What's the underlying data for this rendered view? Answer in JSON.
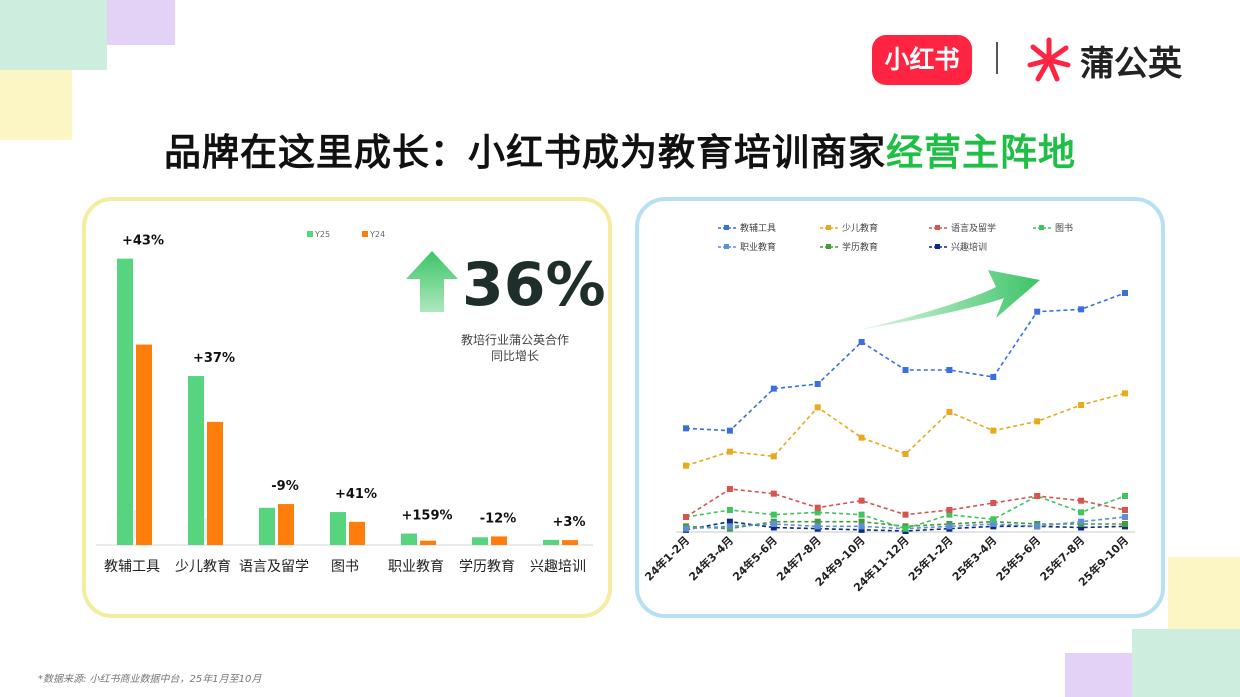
{
  "title": {
    "prefix": "品牌在这里成长：小红书成为教育培训商家",
    "highlight": "经营主阵地"
  },
  "brand": {
    "xhs": "小红书",
    "pgy": "蒲公英"
  },
  "colors": {
    "accent_green": "#1fbf46",
    "y25": "#57d47e",
    "y24": "#ff7d0a"
  },
  "highlight_stat": {
    "value": "36%",
    "caption_line1": "教培行业蒲公英合作",
    "caption_line2": "同比增长"
  },
  "footnote": "*数据来源: 小红书商业数据中台，25年1月至10月",
  "chart_data": [
    {
      "type": "bar",
      "legend": [
        "Y25",
        "Y24"
      ],
      "categories": [
        "教辅工具",
        "少儿教育",
        "语言及留学",
        "图书",
        "职业教育",
        "学历教育",
        "兴趣培训"
      ],
      "series": [
        {
          "name": "Y25",
          "values": [
            100,
            59,
            13,
            11.5,
            4,
            2.7,
            1.8
          ]
        },
        {
          "name": "Y24",
          "values": [
            70,
            43,
            14.3,
            8.1,
            1.5,
            3,
            1.7
          ]
        }
      ],
      "growth_labels": [
        "+43%",
        "+37%",
        "-9%",
        "+41%",
        "+159%",
        "-12%",
        "+3%"
      ],
      "ylim": [
        0,
        110
      ],
      "legend_position": "top"
    },
    {
      "type": "line",
      "x": [
        "24年1-2月",
        "24年3-4月",
        "24年5-6月",
        "24年7-8月",
        "24年9-10月",
        "24年11-12月",
        "25年1-2月",
        "25年3-4月",
        "25年5-6月",
        "25年7-8月",
        "25年9-10月"
      ],
      "series": [
        {
          "name": "教辅工具",
          "color": "#3b6fe0",
          "values": [
            44,
            43,
            61,
            63,
            81,
            69,
            69,
            66,
            94,
            95,
            102
          ]
        },
        {
          "name": "少儿教育",
          "color": "#e8a91c",
          "values": [
            28,
            34,
            32,
            53,
            40,
            33,
            51,
            43,
            47,
            54,
            59
          ]
        },
        {
          "name": "语言及留学",
          "color": "#d9534f",
          "values": [
            6,
            18,
            16,
            10,
            13,
            7,
            9,
            12,
            15,
            13,
            9
          ]
        },
        {
          "name": "图书",
          "color": "#3fc45e",
          "values": [
            6,
            9,
            7,
            8,
            7,
            1,
            7,
            5,
            15,
            8,
            15
          ]
        },
        {
          "name": "职业教育",
          "color": "#5b8fd6",
          "values": [
            1,
            2,
            3,
            2,
            2,
            1,
            2,
            3,
            2,
            4,
            6
          ]
        },
        {
          "name": "学历教育",
          "color": "#4a9a3a",
          "values": [
            2,
            1,
            4,
            4,
            4,
            2,
            3,
            4,
            3,
            3,
            3
          ]
        },
        {
          "name": "兴趣培训",
          "color": "#0d2b80",
          "values": [
            0.5,
            4,
            1.5,
            1,
            0.5,
            0,
            1,
            2,
            2,
            1.5,
            2
          ]
        }
      ],
      "ylim": [
        0,
        110
      ],
      "legend_position": "top",
      "grid": false
    }
  ]
}
